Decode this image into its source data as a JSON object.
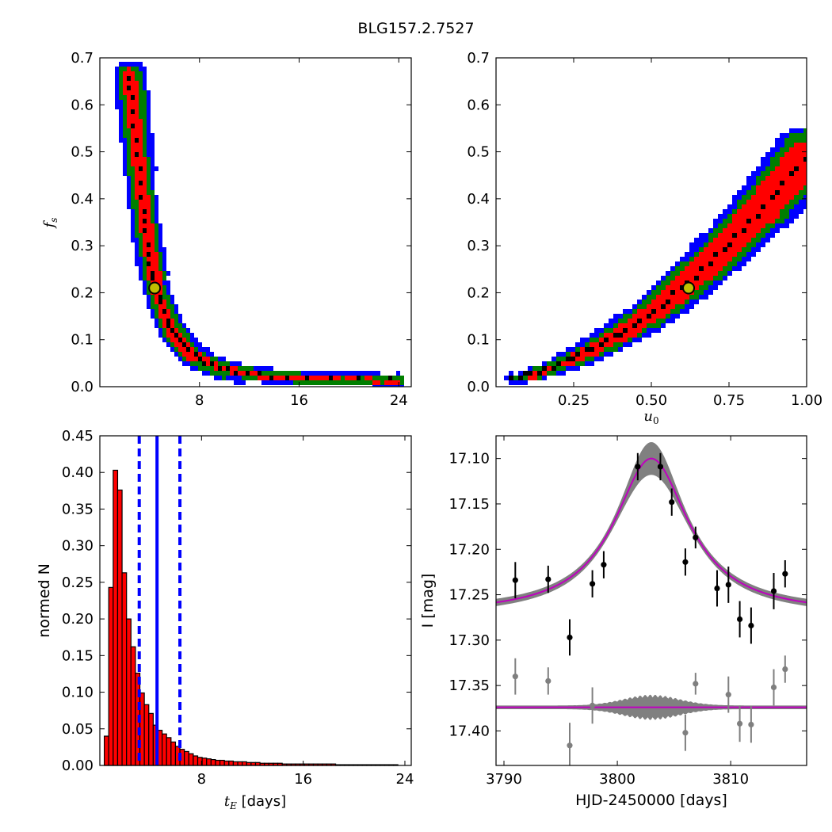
{
  "figure": {
    "title": "BLG157.2.7527"
  },
  "colors": {
    "blue": "#0000ff",
    "green": "#007f00",
    "red": "#ff0000",
    "black": "#000000",
    "marker_fill": "#bfbf00",
    "band_gray": "#808080",
    "model_magenta": "#bf00bf",
    "residual_gray": "#7f7f7f"
  },
  "chart_data": [
    {
      "id": "tE_vs_fs",
      "type": "heatmap",
      "xlabel": "",
      "ylabel": "f_s",
      "xlim": [
        0,
        25
      ],
      "ylim": [
        0,
        0.7
      ],
      "xticks": [
        8,
        16,
        24
      ],
      "yticks": [
        0.0,
        0.1,
        0.2,
        0.3,
        0.4,
        0.5,
        0.6,
        0.7
      ],
      "levels": [
        "3-sigma (blue)",
        "2-sigma (green)",
        "1-sigma (red)",
        "peak (black)"
      ],
      "ridge": [
        [
          2.4,
          0.66
        ],
        [
          2.6,
          0.6
        ],
        [
          2.9,
          0.52
        ],
        [
          3.2,
          0.44
        ],
        [
          3.5,
          0.37
        ],
        [
          3.8,
          0.31
        ],
        [
          4.1,
          0.26
        ],
        [
          4.5,
          0.21
        ],
        [
          5.0,
          0.17
        ],
        [
          5.6,
          0.13
        ],
        [
          6.3,
          0.1
        ],
        [
          7.2,
          0.075
        ],
        [
          8.3,
          0.055
        ],
        [
          9.6,
          0.04
        ],
        [
          11.5,
          0.03
        ],
        [
          14,
          0.022
        ],
        [
          18,
          0.018
        ],
        [
          24,
          0.016
        ]
      ],
      "best_fit": {
        "x": 4.4,
        "y": 0.21
      }
    },
    {
      "id": "u0_vs_fs",
      "type": "heatmap",
      "xlabel": "u_0",
      "ylabel": "",
      "xlim": [
        0,
        1.0
      ],
      "ylim": [
        0,
        0.7
      ],
      "xticks": [
        0.25,
        0.5,
        0.75,
        1.0
      ],
      "xtick_labels": [
        "0.25",
        "0.50",
        "0.75",
        "1.00"
      ],
      "yticks": [
        0.0,
        0.1,
        0.2,
        0.3,
        0.4,
        0.5,
        0.6,
        0.7
      ],
      "ridge": [
        [
          0.05,
          0.017
        ],
        [
          0.1,
          0.025
        ],
        [
          0.15,
          0.035
        ],
        [
          0.2,
          0.048
        ],
        [
          0.25,
          0.062
        ],
        [
          0.3,
          0.078
        ],
        [
          0.35,
          0.095
        ],
        [
          0.4,
          0.114
        ],
        [
          0.45,
          0.135
        ],
        [
          0.5,
          0.158
        ],
        [
          0.55,
          0.182
        ],
        [
          0.6,
          0.21
        ],
        [
          0.65,
          0.24
        ],
        [
          0.7,
          0.272
        ],
        [
          0.75,
          0.305
        ],
        [
          0.8,
          0.34
        ],
        [
          0.85,
          0.375
        ],
        [
          0.9,
          0.41
        ],
        [
          0.95,
          0.45
        ],
        [
          1.0,
          0.49
        ]
      ],
      "best_fit": {
        "x": 0.62,
        "y": 0.21
      }
    },
    {
      "id": "tE_histogram",
      "type": "bar",
      "xlabel": "t_E [days]",
      "ylabel": "normed N",
      "xlim": [
        0,
        24.5
      ],
      "ylim": [
        0,
        0.45
      ],
      "xticks": [
        8,
        16,
        24
      ],
      "yticks": [
        0.0,
        0.05,
        0.1,
        0.15,
        0.2,
        0.25,
        0.3,
        0.35,
        0.4,
        0.45
      ],
      "ytick_labels": [
        "0.00",
        "0.05",
        "0.10",
        "0.15",
        "0.20",
        "0.25",
        "0.30",
        "0.35",
        "0.40",
        "0.45"
      ],
      "bin_width": 0.35,
      "bin_start": 0.35,
      "values": [
        0.04,
        0.243,
        0.403,
        0.376,
        0.263,
        0.2,
        0.162,
        0.126,
        0.099,
        0.083,
        0.071,
        0.055,
        0.048,
        0.043,
        0.038,
        0.032,
        0.026,
        0.022,
        0.019,
        0.016,
        0.013,
        0.011,
        0.01,
        0.009,
        0.008,
        0.007,
        0.007,
        0.006,
        0.006,
        0.005,
        0.005,
        0.005,
        0.004,
        0.004,
        0.004,
        0.003,
        0.003,
        0.003,
        0.003,
        0.003,
        0.002,
        0.002,
        0.002,
        0.002,
        0.002,
        0.002,
        0.002,
        0.002,
        0.002,
        0.002,
        0.002,
        0.002,
        0.001,
        0.001,
        0.001,
        0.001,
        0.001,
        0.001,
        0.001,
        0.001,
        0.001,
        0.001,
        0.001,
        0.001,
        0.001,
        0.001
      ],
      "vlines": {
        "median": 4.5,
        "lower": 3.1,
        "upper": 6.3
      }
    },
    {
      "id": "lightcurve",
      "type": "scatter",
      "xlabel": "HJD-2450000 [days]",
      "ylabel": "I [mag]",
      "xlim": [
        3789.3,
        3816.7
      ],
      "ylim": [
        17.438,
        17.075
      ],
      "xticks": [
        3790,
        3800,
        3810
      ],
      "yticks": [
        17.1,
        17.15,
        17.2,
        17.25,
        17.3,
        17.35,
        17.4
      ],
      "ytick_labels": [
        "17.10",
        "17.15",
        "17.20",
        "17.25",
        "17.30",
        "17.35",
        "17.40"
      ],
      "model": {
        "t0": 3803,
        "peak_mag": 17.1,
        "base_mag": 17.272,
        "width": 4.0
      },
      "residual_baseline": 17.374,
      "points": [
        {
          "x": 3791.0,
          "y": 17.234,
          "err": 0.02
        },
        {
          "x": 3793.9,
          "y": 17.233,
          "err": 0.015
        },
        {
          "x": 3795.8,
          "y": 17.297,
          "err": 0.02
        },
        {
          "x": 3797.8,
          "y": 17.238,
          "err": 0.015
        },
        {
          "x": 3798.8,
          "y": 17.217,
          "err": 0.015
        },
        {
          "x": 3801.8,
          "y": 17.109,
          "err": 0.015
        },
        {
          "x": 3803.8,
          "y": 17.109,
          "err": 0.015
        },
        {
          "x": 3804.8,
          "y": 17.148,
          "err": 0.015
        },
        {
          "x": 3806.0,
          "y": 17.214,
          "err": 0.015
        },
        {
          "x": 3806.9,
          "y": 17.187,
          "err": 0.012
        },
        {
          "x": 3808.8,
          "y": 17.243,
          "err": 0.02
        },
        {
          "x": 3809.8,
          "y": 17.239,
          "err": 0.02
        },
        {
          "x": 3810.8,
          "y": 17.277,
          "err": 0.02
        },
        {
          "x": 3811.8,
          "y": 17.284,
          "err": 0.02
        },
        {
          "x": 3813.8,
          "y": 17.246,
          "err": 0.02
        },
        {
          "x": 3814.8,
          "y": 17.227,
          "err": 0.015
        }
      ],
      "residuals": [
        {
          "x": 3791.0,
          "y": 17.34,
          "err": 0.02
        },
        {
          "x": 3793.9,
          "y": 17.345,
          "err": 0.015
        },
        {
          "x": 3795.8,
          "y": 17.416,
          "err": 0.025
        },
        {
          "x": 3797.8,
          "y": 17.372,
          "err": 0.02
        },
        {
          "x": 3806.0,
          "y": 17.402,
          "err": 0.02
        },
        {
          "x": 3806.9,
          "y": 17.348,
          "err": 0.012
        },
        {
          "x": 3809.8,
          "y": 17.36,
          "err": 0.02
        },
        {
          "x": 3810.8,
          "y": 17.392,
          "err": 0.02
        },
        {
          "x": 3811.8,
          "y": 17.393,
          "err": 0.02
        },
        {
          "x": 3813.8,
          "y": 17.352,
          "err": 0.02
        },
        {
          "x": 3814.8,
          "y": 17.332,
          "err": 0.015
        }
      ]
    }
  ]
}
